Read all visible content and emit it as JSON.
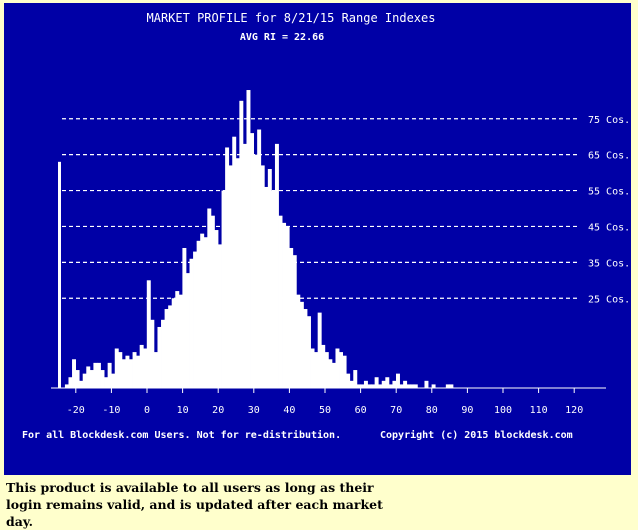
{
  "chart_data": {
    "type": "bar",
    "title": "MARKET PROFILE for 8/21/15 Range Indexes",
    "subtitle": "AVG RI = 22.66",
    "xlabel": "",
    "ylabel": "",
    "x_ticks": [
      -20,
      -10,
      0,
      10,
      20,
      30,
      40,
      50,
      60,
      70,
      80,
      90,
      100,
      110,
      120
    ],
    "xlim": [
      -27,
      128
    ],
    "ylim": [
      0,
      88
    ],
    "bin_width": 1,
    "reference_lines": [
      {
        "value": 25,
        "label": "25 Cos."
      },
      {
        "value": 35,
        "label": "35 Cos."
      },
      {
        "value": 45,
        "label": "45 Cos."
      },
      {
        "value": 55,
        "label": "55 Cos."
      },
      {
        "value": 65,
        "label": "65 Cos."
      },
      {
        "value": 75,
        "label": "75 Cos."
      }
    ],
    "bins": [
      {
        "x": -25,
        "count": 63
      },
      {
        "x": -23,
        "count": 1
      },
      {
        "x": -22,
        "count": 3
      },
      {
        "x": -21,
        "count": 8
      },
      {
        "x": -20,
        "count": 5
      },
      {
        "x": -19,
        "count": 2
      },
      {
        "x": -18,
        "count": 4
      },
      {
        "x": -17,
        "count": 6
      },
      {
        "x": -16,
        "count": 5
      },
      {
        "x": -15,
        "count": 7
      },
      {
        "x": -14,
        "count": 7
      },
      {
        "x": -13,
        "count": 5
      },
      {
        "x": -12,
        "count": 3
      },
      {
        "x": -11,
        "count": 7
      },
      {
        "x": -10,
        "count": 4
      },
      {
        "x": -9,
        "count": 11
      },
      {
        "x": -8,
        "count": 10
      },
      {
        "x": -7,
        "count": 8
      },
      {
        "x": -6,
        "count": 9
      },
      {
        "x": -5,
        "count": 8
      },
      {
        "x": -4,
        "count": 10
      },
      {
        "x": -3,
        "count": 9
      },
      {
        "x": -2,
        "count": 12
      },
      {
        "x": -1,
        "count": 11
      },
      {
        "x": 0,
        "count": 30
      },
      {
        "x": 1,
        "count": 19
      },
      {
        "x": 2,
        "count": 10
      },
      {
        "x": 3,
        "count": 17
      },
      {
        "x": 4,
        "count": 19
      },
      {
        "x": 5,
        "count": 22
      },
      {
        "x": 6,
        "count": 23
      },
      {
        "x": 7,
        "count": 25
      },
      {
        "x": 8,
        "count": 27
      },
      {
        "x": 9,
        "count": 26
      },
      {
        "x": 10,
        "count": 39
      },
      {
        "x": 11,
        "count": 32
      },
      {
        "x": 12,
        "count": 36
      },
      {
        "x": 13,
        "count": 38
      },
      {
        "x": 14,
        "count": 41
      },
      {
        "x": 15,
        "count": 43
      },
      {
        "x": 16,
        "count": 42
      },
      {
        "x": 17,
        "count": 50
      },
      {
        "x": 18,
        "count": 48
      },
      {
        "x": 19,
        "count": 44
      },
      {
        "x": 20,
        "count": 40
      },
      {
        "x": 21,
        "count": 55
      },
      {
        "x": 22,
        "count": 67
      },
      {
        "x": 23,
        "count": 62
      },
      {
        "x": 24,
        "count": 70
      },
      {
        "x": 25,
        "count": 64
      },
      {
        "x": 26,
        "count": 80
      },
      {
        "x": 27,
        "count": 68
      },
      {
        "x": 28,
        "count": 83
      },
      {
        "x": 29,
        "count": 71
      },
      {
        "x": 30,
        "count": 65
      },
      {
        "x": 31,
        "count": 72
      },
      {
        "x": 32,
        "count": 62
      },
      {
        "x": 33,
        "count": 56
      },
      {
        "x": 34,
        "count": 61
      },
      {
        "x": 35,
        "count": 55
      },
      {
        "x": 36,
        "count": 68
      },
      {
        "x": 37,
        "count": 48
      },
      {
        "x": 38,
        "count": 46
      },
      {
        "x": 39,
        "count": 45
      },
      {
        "x": 40,
        "count": 39
      },
      {
        "x": 41,
        "count": 37
      },
      {
        "x": 42,
        "count": 26
      },
      {
        "x": 43,
        "count": 24
      },
      {
        "x": 44,
        "count": 22
      },
      {
        "x": 45,
        "count": 20
      },
      {
        "x": 46,
        "count": 11
      },
      {
        "x": 47,
        "count": 10
      },
      {
        "x": 48,
        "count": 21
      },
      {
        "x": 49,
        "count": 12
      },
      {
        "x": 50,
        "count": 10
      },
      {
        "x": 51,
        "count": 8
      },
      {
        "x": 52,
        "count": 7
      },
      {
        "x": 53,
        "count": 11
      },
      {
        "x": 54,
        "count": 10
      },
      {
        "x": 55,
        "count": 9
      },
      {
        "x": 56,
        "count": 4
      },
      {
        "x": 57,
        "count": 2
      },
      {
        "x": 58,
        "count": 5
      },
      {
        "x": 59,
        "count": 1
      },
      {
        "x": 60,
        "count": 1
      },
      {
        "x": 61,
        "count": 2
      },
      {
        "x": 62,
        "count": 1
      },
      {
        "x": 63,
        "count": 1
      },
      {
        "x": 64,
        "count": 3
      },
      {
        "x": 65,
        "count": 1
      },
      {
        "x": 66,
        "count": 2
      },
      {
        "x": 67,
        "count": 3
      },
      {
        "x": 68,
        "count": 1
      },
      {
        "x": 69,
        "count": 2
      },
      {
        "x": 70,
        "count": 4
      },
      {
        "x": 71,
        "count": 1
      },
      {
        "x": 72,
        "count": 2
      },
      {
        "x": 73,
        "count": 1
      },
      {
        "x": 74,
        "count": 1
      },
      {
        "x": 75,
        "count": 1
      },
      {
        "x": 78,
        "count": 2
      },
      {
        "x": 80,
        "count": 1
      },
      {
        "x": 84,
        "count": 1
      },
      {
        "x": 85,
        "count": 1
      }
    ],
    "grid": "dashed reference lines",
    "legend": "none"
  },
  "footer": {
    "left": "For all Blockdesk.com Users. Not for re-distribution.",
    "right": "Copyright (c) 2015 blockdesk.com"
  },
  "caption": "This product is available to all users as long as their login remains valid, and is updated after each market day.",
  "colors": {
    "panel_background": "#0000a6",
    "bars": "#ffffff",
    "page_background": "#ffffcc"
  }
}
